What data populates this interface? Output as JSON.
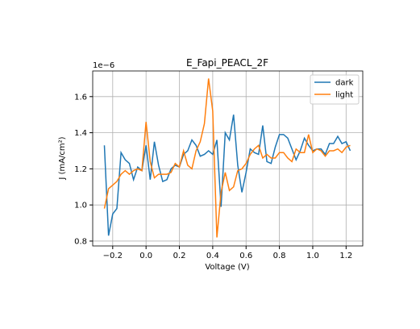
{
  "chart_data": {
    "type": "line",
    "title": "E_Fapi_PEACL_2F",
    "x_label": "Voltage (V)",
    "y_label": "J (mA/cm²)",
    "y_offset_text": "1e−6",
    "x": [
      -0.25,
      -0.225,
      -0.2,
      -0.175,
      -0.15,
      -0.125,
      -0.1,
      -0.075,
      -0.05,
      -0.025,
      0,
      0.025,
      0.05,
      0.075,
      0.1,
      0.125,
      0.15,
      0.175,
      0.2,
      0.225,
      0.25,
      0.275,
      0.3,
      0.325,
      0.35,
      0.375,
      0.4,
      0.425,
      0.45,
      0.475,
      0.5,
      0.525,
      0.55,
      0.575,
      0.6,
      0.625,
      0.65,
      0.675,
      0.7,
      0.725,
      0.75,
      0.775,
      0.8,
      0.825,
      0.85,
      0.875,
      0.9,
      0.925,
      0.95,
      0.975,
      1.0,
      1.025,
      1.05,
      1.075,
      1.1,
      1.125,
      1.15,
      1.175,
      1.2,
      1.225
    ],
    "series": [
      {
        "name": "dark",
        "color": "#1f77b4",
        "values": [
          1.33,
          0.83,
          0.95,
          0.98,
          1.29,
          1.25,
          1.23,
          1.14,
          1.21,
          1.19,
          1.33,
          1.14,
          1.35,
          1.22,
          1.13,
          1.14,
          1.2,
          1.22,
          1.21,
          1.28,
          1.3,
          1.36,
          1.33,
          1.27,
          1.28,
          1.3,
          1.28,
          1.36,
          0.99,
          1.4,
          1.36,
          1.5,
          1.22,
          1.07,
          1.18,
          1.31,
          1.29,
          1.28,
          1.44,
          1.24,
          1.23,
          1.32,
          1.39,
          1.39,
          1.37,
          1.31,
          1.25,
          1.3,
          1.37,
          1.33,
          1.3,
          1.31,
          1.31,
          1.28,
          1.34,
          1.34,
          1.38,
          1.34,
          1.35,
          1.3
        ]
      },
      {
        "name": "light",
        "color": "#ff7f0e",
        "values": [
          0.98,
          1.09,
          1.11,
          1.13,
          1.17,
          1.19,
          1.17,
          1.19,
          1.2,
          1.19,
          1.46,
          1.24,
          1.15,
          1.17,
          1.17,
          1.17,
          1.18,
          1.23,
          1.21,
          1.3,
          1.22,
          1.2,
          1.3,
          1.35,
          1.45,
          1.7,
          1.52,
          0.82,
          1.07,
          1.18,
          1.08,
          1.1,
          1.19,
          1.2,
          1.23,
          1.28,
          1.31,
          1.33,
          1.26,
          1.28,
          1.26,
          1.26,
          1.29,
          1.29,
          1.26,
          1.24,
          1.31,
          1.29,
          1.29,
          1.39,
          1.29,
          1.31,
          1.3,
          1.27,
          1.3,
          1.3,
          1.31,
          1.29,
          1.32,
          1.33
        ]
      }
    ],
    "xlim": [
      -0.32,
      1.3
    ],
    "ylim": [
      0.773,
      1.742
    ],
    "xticks": [
      {
        "value": -0.2,
        "label": "−0.2"
      },
      {
        "value": 0,
        "label": "0.0"
      },
      0.2,
      0.4,
      0.6,
      0.8,
      {
        "value": 1.0,
        "label": "1.0"
      },
      1.2
    ],
    "yticks": [
      0.8,
      {
        "value": 1.0,
        "label": "1.0"
      },
      1.2,
      1.4,
      1.6
    ],
    "grid": true,
    "legend": "upper right"
  }
}
